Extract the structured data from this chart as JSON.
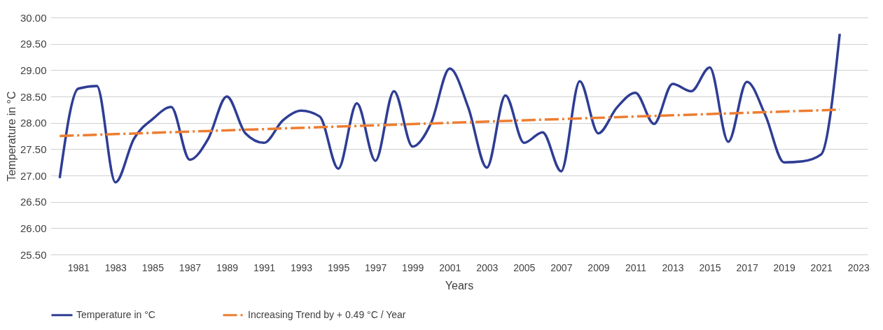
{
  "chart_data": {
    "type": "line",
    "xlabel": "Years",
    "ylabel": "Temperature in °C",
    "x": [
      1980,
      1981,
      1982,
      1983,
      1984,
      1985,
      1986,
      1987,
      1988,
      1989,
      1990,
      1991,
      1992,
      1993,
      1994,
      1995,
      1996,
      1997,
      1998,
      1999,
      2000,
      2001,
      2002,
      2003,
      2004,
      2005,
      2006,
      2007,
      2008,
      2009,
      2010,
      2011,
      2012,
      2013,
      2014,
      2015,
      2016,
      2017,
      2018,
      2019,
      2020,
      2021,
      2022
    ],
    "xlim": [
      1979.5,
      2023.5
    ],
    "xticks": [
      1981,
      1983,
      1985,
      1987,
      1989,
      1991,
      1993,
      1995,
      1997,
      1999,
      2001,
      2003,
      2005,
      2007,
      2009,
      2011,
      2013,
      2015,
      2017,
      2019,
      2021,
      2023
    ],
    "ylim": [
      25.5,
      30
    ],
    "yticks": [
      {
        "value": 25.5,
        "label": "25.50"
      },
      {
        "value": 26,
        "label": "26.00"
      },
      {
        "value": 26.5,
        "label": "26.50"
      },
      {
        "value": 27,
        "label": "27.00"
      },
      {
        "value": 27.5,
        "label": "27.50"
      },
      {
        "value": 28,
        "label": "28.00"
      },
      {
        "value": 28.5,
        "label": "28.50"
      },
      {
        "value": 29,
        "label": "29.00"
      },
      {
        "value": 29.5,
        "label": "29.50"
      },
      {
        "value": 30,
        "label": "30.00"
      }
    ],
    "grid": "y",
    "legend": "bottom",
    "marker": "none",
    "series": [
      {
        "name": "Temperature in °C",
        "color": "#2e3d94",
        "line_style": "solid",
        "values": [
          26.95,
          28.65,
          28.7,
          26.87,
          27.7,
          28.07,
          28.3,
          27.3,
          27.7,
          28.5,
          27.8,
          27.62,
          28.04,
          28.23,
          28.12,
          27.13,
          28.37,
          27.28,
          28.6,
          27.55,
          28.0,
          29.03,
          28.29,
          27.15,
          28.52,
          27.62,
          27.82,
          27.08,
          28.79,
          27.8,
          28.29,
          28.57,
          27.98,
          28.74,
          28.6,
          29.05,
          27.64,
          28.78,
          28.14,
          27.25,
          27.27,
          27.4,
          29.69
        ]
      },
      {
        "name": "Increasing Trend by + 0.49 °C / Year",
        "type": "line",
        "color": "#ed7d31",
        "line_style": "dashed",
        "x": [
          1980,
          2022
        ],
        "values": [
          27.75,
          28.25
        ]
      }
    ]
  }
}
